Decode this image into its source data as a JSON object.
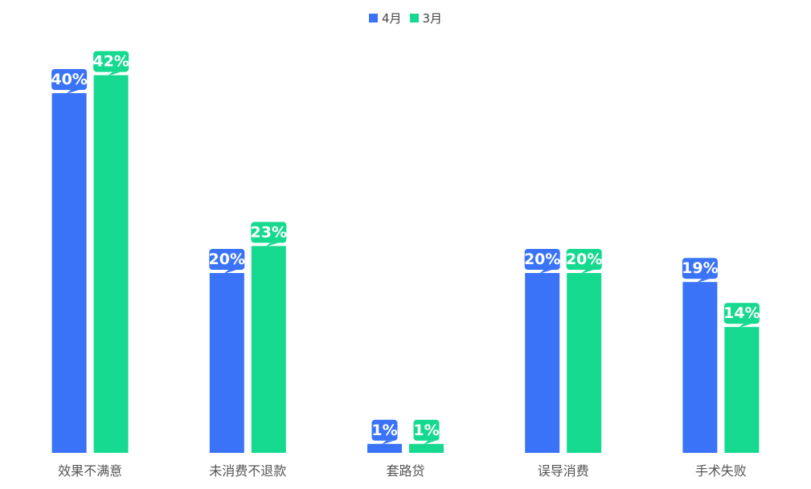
{
  "chart_data": {
    "type": "bar",
    "categories": [
      "效果不满意",
      "未消费不退款",
      "套路贷",
      "误导消费",
      "手术失败"
    ],
    "series": [
      {
        "name": "4月",
        "color": "#3A73F7",
        "values": [
          40,
          20,
          1,
          20,
          19
        ]
      },
      {
        "name": "3月",
        "color": "#16D990",
        "values": [
          42,
          23,
          1,
          20,
          14
        ]
      }
    ],
    "value_suffix": "%",
    "ylim": [
      0,
      50
    ],
    "grid": false,
    "legend_position": "top-center",
    "data_labels": true
  }
}
